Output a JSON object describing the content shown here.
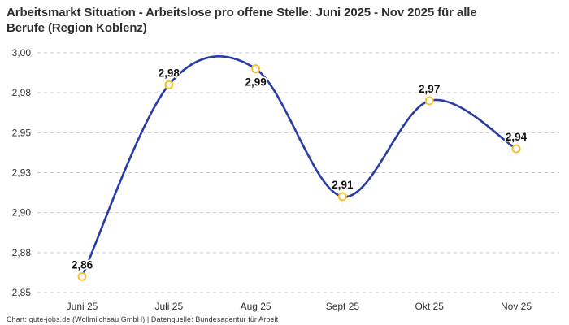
{
  "title": {
    "line1": "Arbeitsmarkt Situation - Arbeitslose pro offene Stelle: Juni 2025 - Nov 2025 für alle",
    "line2": "Berufe (Region Koblenz)"
  },
  "footer": {
    "credit": "Chart: gute-jobs.de (Wollmilchsau GmbH) | Datenquelle: Bundesagentur für Arbeit"
  },
  "colors": {
    "line": "#283ca6",
    "marker_stroke": "#f8c033",
    "marker_fill": "#ffffff",
    "grid": "#c9c9c9",
    "title_text": "#2f2f2f",
    "axis_text": "#333333",
    "value_label_text": "#111111",
    "background": "#ffffff"
  },
  "chart_data": {
    "type": "line",
    "curve": "smooth",
    "title": "Arbeitsmarkt Situation - Arbeitslose pro offene Stelle: Juni 2025 - Nov 2025 für alle Berufe (Region Koblenz)",
    "categories": [
      "Juni 25",
      "Juli 25",
      "Aug 25",
      "Sept 25",
      "Okt 25",
      "Nov 25"
    ],
    "values": [
      2.86,
      2.98,
      2.99,
      2.91,
      2.97,
      2.94
    ],
    "point_labels": [
      "2,86",
      "2,98",
      "2,99",
      "2,91",
      "2,97",
      "2,94"
    ],
    "point_label_positions": [
      "above",
      "above",
      "below",
      "above",
      "above",
      "above"
    ],
    "xlabel": "",
    "ylabel": "",
    "ylim": [
      2.85,
      3.0
    ],
    "yticks": [
      3.0,
      2.975,
      2.95,
      2.925,
      2.9,
      2.875,
      2.85
    ],
    "ytick_labels": [
      "3,00",
      "2,98",
      "2,95",
      "2,93",
      "2,90",
      "2,88",
      "2,85"
    ],
    "grid": "horizontal-dashed",
    "legend": "none"
  }
}
